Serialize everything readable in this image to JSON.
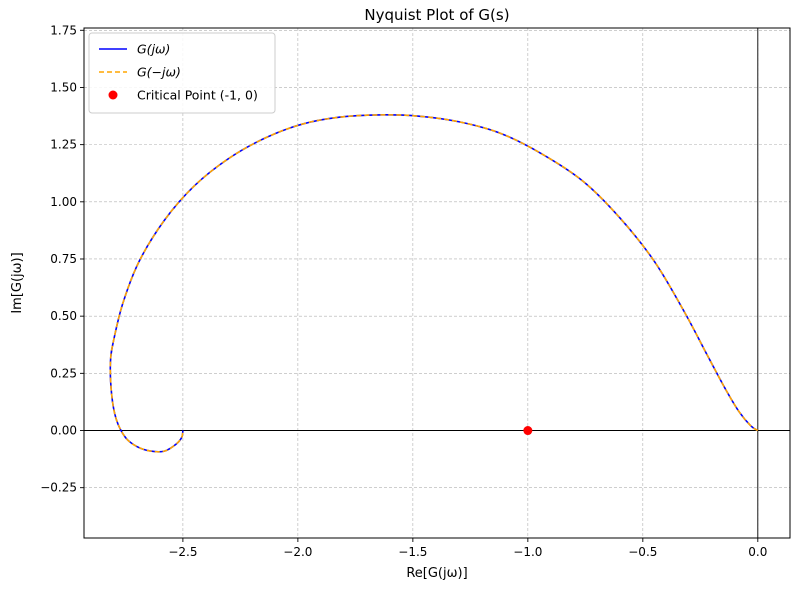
{
  "chart_data": {
    "type": "line",
    "title": "Nyquist Plot of G(s)",
    "xlabel": "Re[G(jω)]",
    "ylabel": "Im[G(jω)]",
    "xlim": [
      -2.93,
      0.14
    ],
    "ylim": [
      -0.47,
      1.76
    ],
    "x_ticks": [
      -2.5,
      -2.0,
      -1.5,
      -1.0,
      -0.5,
      0.0
    ],
    "x_tick_labels": [
      "−2.5",
      "−2.0",
      "−1.5",
      "−1.0",
      "−0.5",
      "0.0"
    ],
    "y_ticks": [
      -0.25,
      0.0,
      0.25,
      0.5,
      0.75,
      1.0,
      1.25,
      1.5,
      1.75
    ],
    "y_tick_labels": [
      "−0.25",
      "0.00",
      "0.25",
      "0.50",
      "0.75",
      "1.00",
      "1.25",
      "1.50",
      "1.75"
    ],
    "grid": true,
    "legend_position": "top-left",
    "series": [
      {
        "name": "G(jω)",
        "color": "#0000ff",
        "style": "solid",
        "x": [
          0.0,
          -0.03,
          -0.08,
          -0.14,
          -0.22,
          -0.32,
          -0.45,
          -0.6,
          -0.76,
          -0.94,
          -1.12,
          -1.3,
          -1.48,
          -1.65,
          -1.82,
          -1.98,
          -2.14,
          -2.3,
          -2.45,
          -2.58,
          -2.69,
          -2.76,
          -2.8,
          -2.815,
          -2.81,
          -2.79,
          -2.75,
          -2.7,
          -2.64,
          -2.58,
          -2.53,
          -2.505,
          -2.5
        ],
        "y": [
          0.0,
          0.02,
          0.08,
          0.18,
          0.33,
          0.52,
          0.74,
          0.93,
          1.09,
          1.21,
          1.3,
          1.35,
          1.375,
          1.38,
          1.37,
          1.34,
          1.28,
          1.19,
          1.07,
          0.92,
          0.74,
          0.56,
          0.4,
          0.3,
          0.16,
          0.05,
          -0.03,
          -0.07,
          -0.09,
          -0.09,
          -0.06,
          -0.03,
          0.0
        ]
      },
      {
        "name": "G(−jω)",
        "color": "#ffa500",
        "style": "dashed",
        "x": [
          0.0,
          -0.03,
          -0.08,
          -0.14,
          -0.22,
          -0.32,
          -0.45,
          -0.6,
          -0.76,
          -0.94,
          -1.12,
          -1.3,
          -1.48,
          -1.65,
          -1.82,
          -1.98,
          -2.14,
          -2.3,
          -2.45,
          -2.58,
          -2.69,
          -2.76,
          -2.8,
          -2.815,
          -2.81,
          -2.79,
          -2.75,
          -2.7,
          -2.64,
          -2.58,
          -2.53,
          -2.505,
          -2.5
        ],
        "y": [
          0.0,
          0.02,
          0.08,
          0.18,
          0.33,
          0.52,
          0.74,
          0.93,
          1.09,
          1.21,
          1.3,
          1.35,
          1.375,
          1.38,
          1.37,
          1.34,
          1.28,
          1.19,
          1.07,
          0.92,
          0.74,
          0.56,
          0.4,
          0.3,
          0.16,
          0.05,
          -0.03,
          -0.07,
          -0.09,
          -0.09,
          -0.06,
          -0.03,
          0.0
        ]
      }
    ],
    "points": [
      {
        "name": "Critical Point (-1, 0)",
        "x": -1.0,
        "y": 0.0,
        "color": "#ff0000"
      }
    ],
    "reference_lines": {
      "x0": true,
      "y0": true
    },
    "legend": [
      {
        "label": "G(jω)",
        "kind": "line",
        "color": "#0000ff",
        "style": "solid"
      },
      {
        "label": "G(−jω)",
        "kind": "line",
        "color": "#ffa500",
        "style": "dashed"
      },
      {
        "label": "Critical Point (-1, 0)",
        "kind": "marker",
        "color": "#ff0000"
      }
    ]
  }
}
